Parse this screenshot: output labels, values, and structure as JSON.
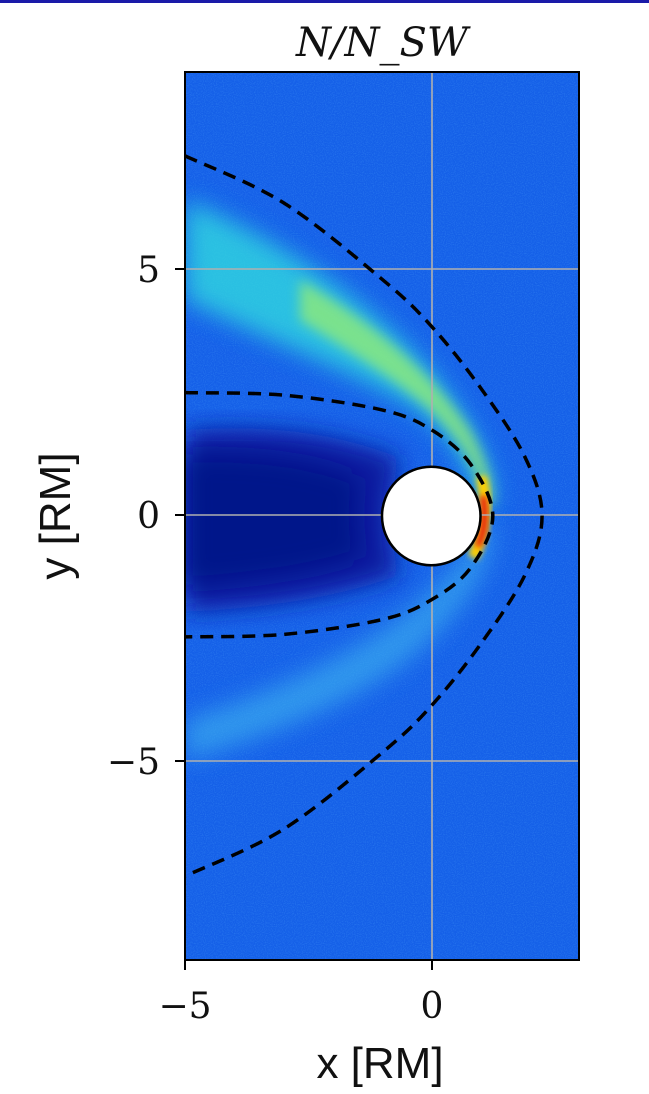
{
  "chart_data": {
    "type": "heatmap",
    "title": "N/N_SW",
    "xlabel": "x [RM]",
    "ylabel": "y [RM]",
    "xlim": [
      -5,
      3
    ],
    "ylim": [
      -9,
      9
    ],
    "x_ticks": [
      {
        "value": -5,
        "label": "−5"
      },
      {
        "value": 0,
        "label": "0"
      }
    ],
    "y_ticks": [
      {
        "value": 5,
        "label": "5"
      },
      {
        "value": 0,
        "label": "0"
      },
      {
        "value": -5,
        "label": "−5"
      }
    ],
    "grid": true,
    "colormap": "jet",
    "background_level_color": "#1560e8",
    "planet": {
      "center": [
        0,
        0
      ],
      "radius": 1,
      "fill": "#ffffff"
    },
    "boundaries": [
      {
        "name": "bow shock",
        "style": "dashed",
        "color": "#000000",
        "points": [
          [
            -5,
            7.3
          ],
          [
            -3,
            6.35
          ],
          [
            -1,
            4.8
          ],
          [
            0,
            3.85
          ],
          [
            1,
            2.6
          ],
          [
            1.9,
            1.2
          ],
          [
            2.25,
            0
          ],
          [
            1.9,
            -1.2
          ],
          [
            1,
            -2.6
          ],
          [
            0,
            -3.85
          ],
          [
            -1,
            -4.8
          ],
          [
            -3,
            -6.35
          ],
          [
            -5,
            -7.3
          ]
        ]
      },
      {
        "name": "magnetopause",
        "style": "dashed",
        "color": "#000000",
        "points": [
          [
            -5,
            2.5
          ],
          [
            -3,
            2.45
          ],
          [
            -1,
            2.15
          ],
          [
            0,
            1.75
          ],
          [
            0.8,
            1.05
          ],
          [
            1.25,
            0
          ],
          [
            0.8,
            -1.05
          ],
          [
            0,
            -1.7
          ],
          [
            -1,
            -2.1
          ],
          [
            -3,
            -2.4
          ],
          [
            -5,
            -2.45
          ]
        ]
      }
    ]
  }
}
